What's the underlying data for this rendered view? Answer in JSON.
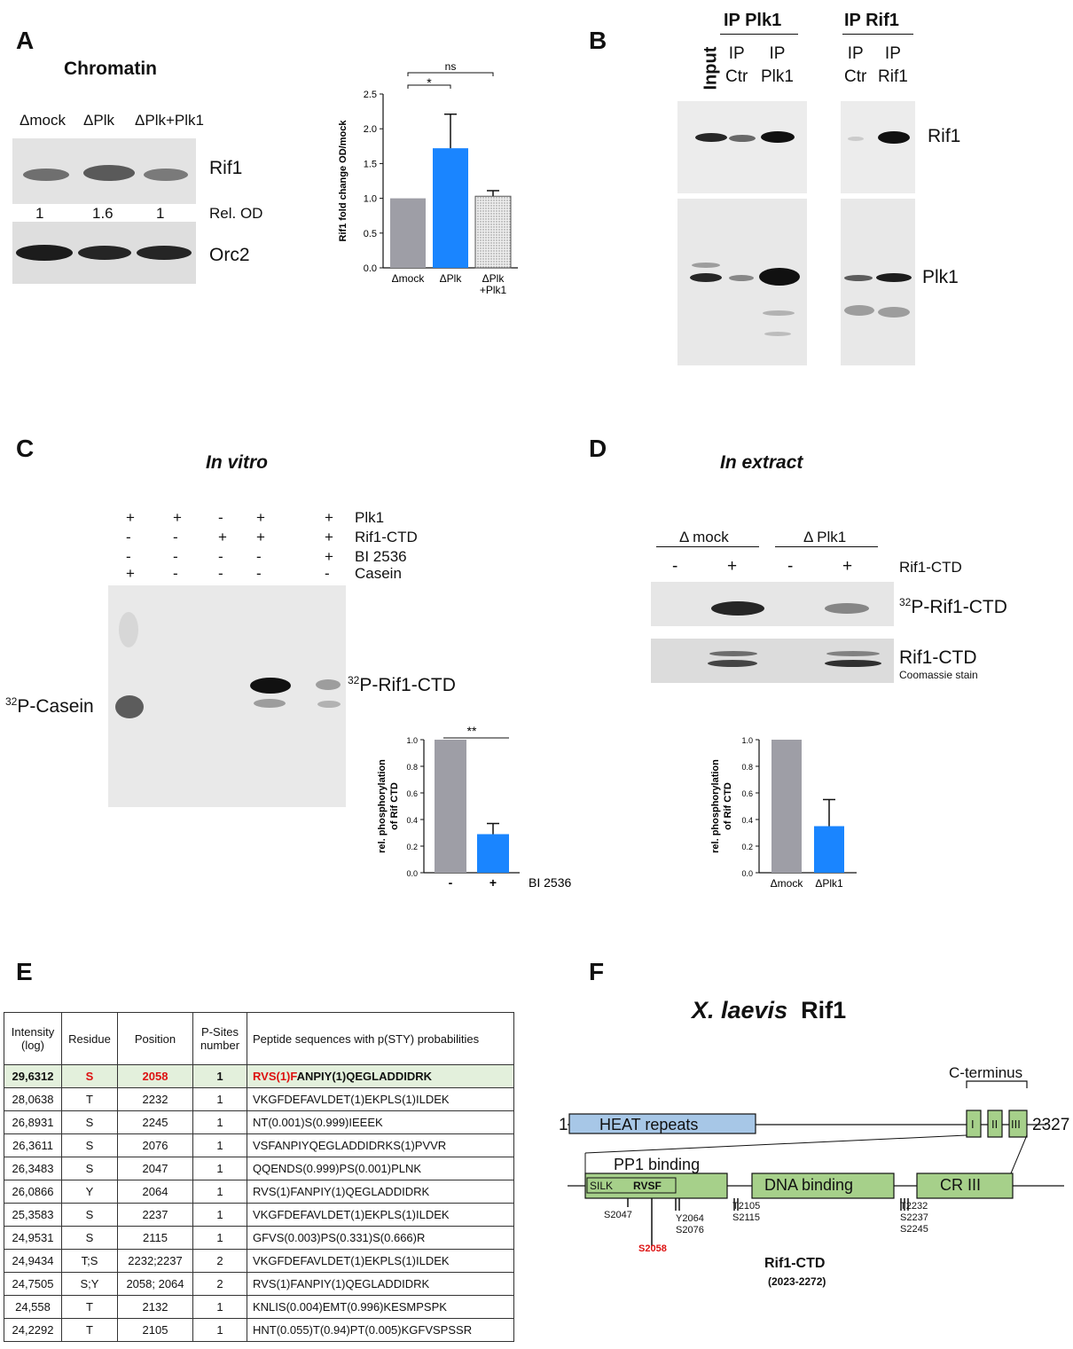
{
  "panels": {
    "A": "A",
    "B": "B",
    "C": "C",
    "D": "D",
    "E": "E",
    "F": "F"
  },
  "panelA": {
    "title": "Chromatin",
    "lanes": [
      "Δmock",
      "ΔPlk",
      "ΔPlk+Plk1"
    ],
    "blot_labels": [
      "Rif1",
      "Orc2"
    ],
    "rel_od_label": "Rel. OD",
    "rel_od_values": [
      "1",
      "1.6",
      "1"
    ]
  },
  "panelB": {
    "group1": "IP Plk1",
    "group2": "IP Rif1",
    "input": "Input",
    "lanes": [
      "IP\nCtr",
      "IP\nPlk1",
      "IP\nCtr",
      "IP\nRif1"
    ],
    "blot_labels": [
      "Rif1",
      "Plk1"
    ]
  },
  "panelC": {
    "title": "In vitro",
    "row_labels": [
      "Plk1",
      "Rif1-CTD",
      "BI 2536",
      "Casein"
    ],
    "signs": [
      [
        "+",
        "+",
        "-",
        "+",
        "+"
      ],
      [
        "-",
        "-",
        "+",
        "+",
        "+"
      ],
      [
        "-",
        "-",
        "-",
        "-",
        "+"
      ],
      [
        "+",
        "-",
        "-",
        "-",
        "-"
      ]
    ],
    "casein_label": "P-Casein",
    "rif_label": "P-Rif1-CTD",
    "sup32": "32"
  },
  "panelD": {
    "title": "In extract",
    "group1": "Δ mock",
    "group2": "Δ Plk1",
    "signs": [
      "-",
      "+",
      "-",
      "+"
    ],
    "row_label": "Rif1-CTD",
    "p_label": "P-Rif1-CTD",
    "sup32": "32",
    "coom_label": "Rif1-CTD",
    "coom_sub": "Coomassie stain"
  },
  "chart_data": [
    {
      "type": "bar",
      "panel": "A",
      "categories": [
        "Δmock",
        "ΔPlk",
        "ΔPlk\n+Plk1"
      ],
      "values": [
        1.0,
        1.72,
        1.03
      ],
      "errors": [
        0,
        0.49,
        0.08
      ],
      "colors": [
        "#9e9ea6",
        "#1a85ff",
        "#d8d8d8"
      ],
      "ylabel": "Rif1  fold change OD/mock",
      "ylim": [
        0,
        2.5
      ],
      "yticks": [
        "0.0",
        "0.5",
        "1.0",
        "1.5",
        "2.0",
        "2.5"
      ],
      "sig": [
        "*",
        "ns"
      ]
    },
    {
      "type": "bar",
      "panel": "C",
      "categories": [
        "-",
        "+"
      ],
      "values": [
        1.0,
        0.29
      ],
      "errors": [
        0,
        0.08
      ],
      "colors": [
        "#9e9ea6",
        "#1a85ff"
      ],
      "ylabel": "rel. phosphorylation\nof Rif CTD",
      "xlabel": "BI 2536",
      "ylim": [
        0,
        1.0
      ],
      "yticks": [
        "0.0",
        "0.2",
        "0.4",
        "0.6",
        "0.8",
        "1.0"
      ],
      "sig": [
        "**"
      ]
    },
    {
      "type": "bar",
      "panel": "D",
      "categories": [
        "Δmock",
        "ΔPlk1"
      ],
      "values": [
        1.0,
        0.35
      ],
      "errors": [
        0,
        0.2
      ],
      "colors": [
        "#9e9ea6",
        "#1a85ff"
      ],
      "ylabel": "rel. phosphorylation\nof Rif CTD",
      "ylim": [
        0,
        1.0
      ],
      "yticks": [
        "0.0",
        "0.2",
        "0.4",
        "0.6",
        "0.8",
        "1.0"
      ]
    }
  ],
  "panelE": {
    "headers": [
      "Intensity\n(log)",
      "Residue",
      "Position",
      "P-Sites\nnumber",
      "Peptide sequences with p(STY) probabilities"
    ],
    "rows": [
      [
        "29,6312",
        "S",
        "2058",
        "1",
        "RVS(1)FANPIY(1)QEGLADDIDRK"
      ],
      [
        "28,0638",
        "T",
        "2232",
        "1",
        "VKGFDEFAVLDET(1)EKPLS(1)ILDEK"
      ],
      [
        "26,8931",
        "S",
        "2245",
        "1",
        "NT(0.001)S(0.999)IEEEK"
      ],
      [
        "26,3611",
        "S",
        "2076",
        "1",
        "VSFANPIYQEGLADDIDRKS(1)PVVR"
      ],
      [
        "26,3483",
        "S",
        "2047",
        "1",
        "QQENDS(0.999)PS(0.001)PLNK"
      ],
      [
        "26,0866",
        "Y",
        "2064",
        "1",
        "RVS(1)FANPIY(1)QEGLADDIDRK"
      ],
      [
        "25,3583",
        "S",
        "2237",
        "1",
        "VKGFDEFAVLDET(1)EKPLS(1)ILDEK"
      ],
      [
        "24,9531",
        "S",
        "2115",
        "1",
        "GFVS(0.003)PS(0.331)S(0.666)R"
      ],
      [
        "24,9434",
        "T;S",
        "2232;2237",
        "2",
        "VKGFDEFAVLDET(1)EKPLS(1)ILDEK"
      ],
      [
        "24,7505",
        "S;Y",
        "2058; 2064",
        "2",
        "RVS(1)FANPIY(1)QEGLADDIDRK"
      ],
      [
        "24,558",
        "T",
        "2132",
        "1",
        "KNLIS(0.004)EMT(0.996)KESMPSPK"
      ],
      [
        "24,2292",
        "T",
        "2105",
        "1",
        "HNT(0.055)T(0.94)PT(0.005)KGFVSPSSR"
      ]
    ],
    "highlight_seq_red": "RVS(1)F",
    "highlight_seq_rest": "ANPIY(1)QEGLADDIDRK"
  },
  "panelF": {
    "title_species": "X. laevis",
    "title_protein": "Rif1",
    "cterm": "C-terminus",
    "start": "1",
    "end": "2327",
    "heat": "HEAT repeats",
    "cr": [
      "I",
      "II",
      "III"
    ],
    "pp1": "PP1 binding",
    "silk": "SILK",
    "rvsf": "RVSF",
    "dna": "DNA binding",
    "cr3": "CR III",
    "sites_a": "S2047",
    "sites_b": "S2058",
    "sites_c": "Y2064\nS2076",
    "sites_d": "T2105\nS2115",
    "sites_e": "T2232\nS2237\nS2245",
    "ctd": "Rif1-CTD",
    "ctd_range": "(2023-2272)"
  }
}
